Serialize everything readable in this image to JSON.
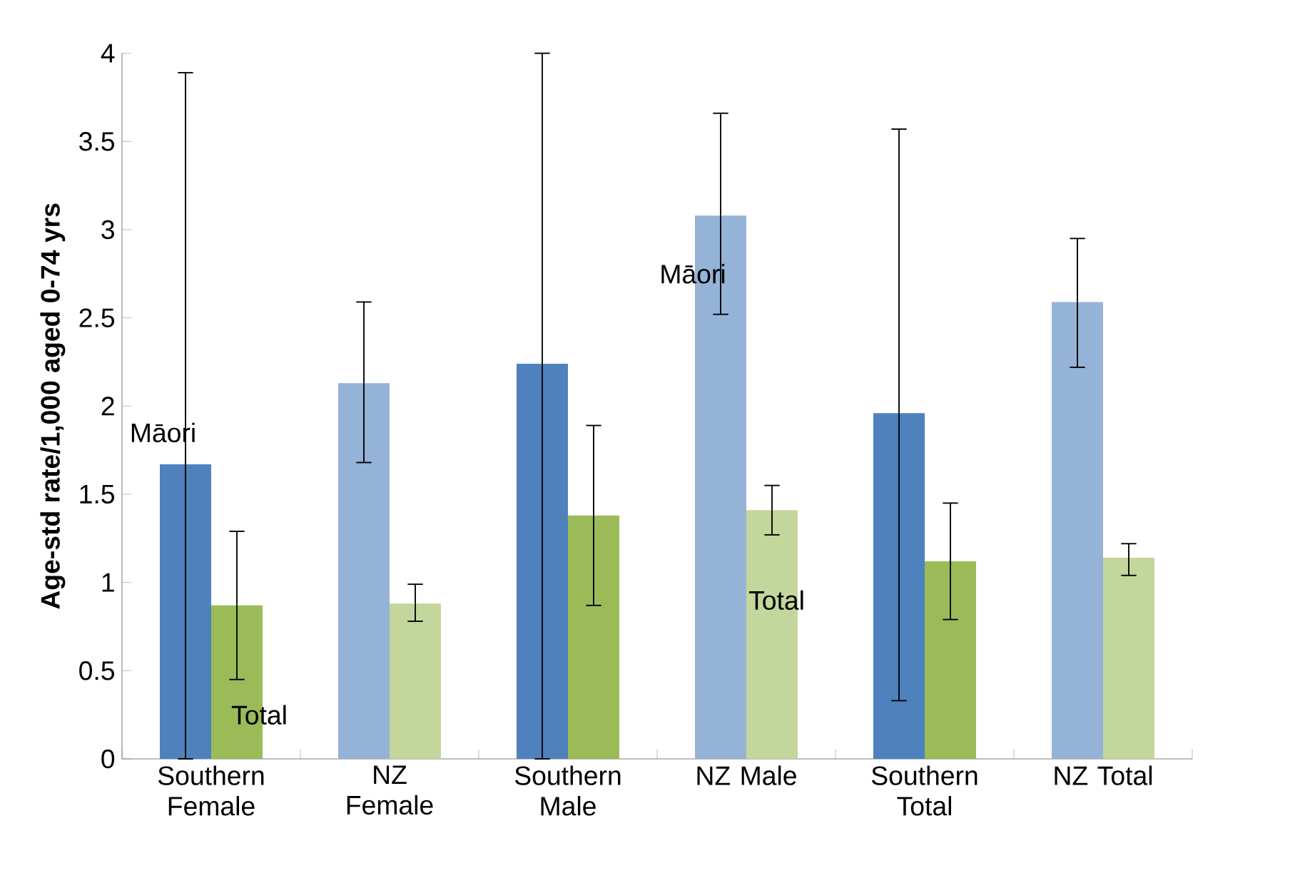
{
  "chart_data": {
    "type": "bar",
    "ylabel": "Age-std rate/1,000 aged 0-74 yrs",
    "categories": [
      "Southern Female",
      "NZ Female",
      "Southern Male",
      "NZ Male",
      "Southern Total",
      "NZ Total"
    ],
    "series": [
      {
        "colors": [
          "#4f81bd",
          "#95b3d7",
          "#4f81bd",
          "#95b3d7",
          "#4f81bd",
          "#95b3d7"
        ],
        "values": [
          1.67,
          2.13,
          2.24,
          3.08,
          1.96,
          2.59
        ],
        "errors": [
          [
            0,
            3.89
          ],
          [
            1.68,
            2.59
          ],
          [
            0,
            4.0
          ],
          [
            2.52,
            3.66
          ],
          [
            0.33,
            3.57
          ],
          [
            2.22,
            2.95
          ]
        ]
      },
      {
        "colors": [
          "#9bbb59",
          "#c3d69b",
          "#9bbb59",
          "#c3d69b",
          "#9bbb59",
          "#c3d69b"
        ],
        "values": [
          0.87,
          0.88,
          1.38,
          1.41,
          1.12,
          1.14
        ],
        "errors": [
          [
            0.45,
            1.29
          ],
          [
            0.78,
            0.99
          ],
          [
            0.87,
            1.89
          ],
          [
            1.27,
            1.55
          ],
          [
            0.79,
            1.45
          ],
          [
            1.04,
            1.22
          ]
        ]
      }
    ],
    "ylim": [
      0,
      4
    ],
    "yticks": [
      0,
      0.5,
      1,
      1.5,
      2,
      2.5,
      3,
      3.5,
      4
    ],
    "annotations": [
      "Māori",
      "Total",
      "Māori",
      "Total"
    ]
  }
}
